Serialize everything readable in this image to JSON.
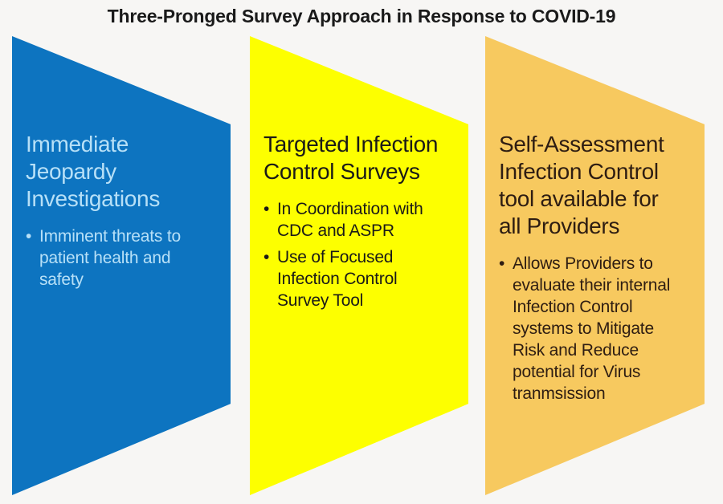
{
  "title": "Three-Pronged Survey Approach in Response to COVID-19",
  "title_color": "#1a1a1a",
  "background_color": "#f7f6f4",
  "bullet_char": "•",
  "panels": [
    {
      "id": "immediate-jeopardy-investigations",
      "bg": "#0d74c0",
      "text_color": "#b7e0f7",
      "heading": "Immediate\nJeopardy\nInvestigations",
      "bullets": [
        "Imminent threats to\npatient health and\nsafety"
      ]
    },
    {
      "id": "targeted-infection-control-surveys",
      "bg": "#fdff00",
      "text_color": "#1a1a18",
      "heading": "Targeted Infection\nControl Surveys",
      "bullets": [
        "In Coordination with\nCDC and ASPR",
        "Use of Focused\nInfection Control\nSurvey Tool"
      ]
    },
    {
      "id": "self-assessment-infection-control-tool",
      "bg": "#f7c95f",
      "text_color": "#2e1d12",
      "heading": "Self-Assessment\nInfection Control\ntool available for\nall Providers",
      "bullets": [
        "Allows Providers to\nevaluate their internal\nInfection Control\nsystems to Mitigate\nRisk and Reduce\npotential for Virus\ntranmsission"
      ]
    }
  ]
}
